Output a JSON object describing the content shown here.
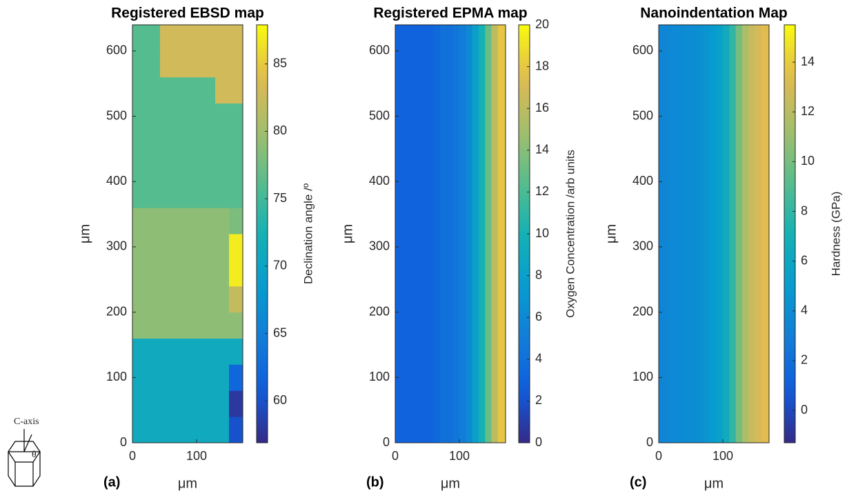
{
  "chart_data": [
    {
      "type": "heatmap",
      "title": "Registered EBSD map",
      "panel_label": "(a)",
      "xlabel": "μm",
      "ylabel": "μm",
      "colorbar_label": "Declination angle /º",
      "colormap": "parula",
      "xlim": [
        0,
        172
      ],
      "ylim": [
        0,
        640
      ],
      "xticks": [
        0,
        100
      ],
      "yticks": [
        0,
        100,
        200,
        300,
        400,
        500,
        600
      ],
      "clim": [
        56.9,
        87.9
      ],
      "cticks": [
        60,
        65,
        70,
        75,
        80,
        85
      ],
      "x_edges": [
        0,
        21.5,
        43,
        64.5,
        86,
        107.5,
        129,
        150.5,
        172
      ],
      "y_edges": [
        0,
        40,
        80,
        120,
        160,
        200,
        240,
        280,
        320,
        360,
        400,
        440,
        480,
        520,
        560,
        600,
        640
      ],
      "z": [
        [
          71,
          71,
          71,
          71,
          71,
          71,
          71,
          60
        ],
        [
          71,
          71,
          71,
          71,
          71,
          71,
          71,
          58
        ],
        [
          71,
          71,
          71,
          71,
          71,
          71,
          71,
          62
        ],
        [
          71,
          71,
          71,
          71,
          71,
          71,
          71,
          71
        ],
        [
          79,
          79,
          79,
          79,
          79,
          79,
          79,
          79
        ],
        [
          79,
          79,
          79,
          79,
          79,
          79,
          79,
          82
        ],
        [
          79,
          79,
          79,
          79,
          79,
          79,
          79,
          87
        ],
        [
          79,
          79,
          79,
          79,
          79,
          79,
          79,
          87
        ],
        [
          79,
          79,
          79,
          79,
          79,
          79,
          79,
          78
        ],
        [
          76,
          76,
          76,
          76,
          76,
          76,
          76,
          76
        ],
        [
          76,
          76,
          76,
          76,
          76,
          76,
          76,
          76
        ],
        [
          76,
          76,
          76,
          76,
          76,
          76,
          76,
          76
        ],
        [
          76,
          76,
          76,
          76,
          76,
          76,
          76,
          76
        ],
        [
          76,
          76,
          76,
          76,
          76,
          76,
          83,
          83
        ],
        [
          76,
          76,
          83,
          83,
          83,
          83,
          83,
          83
        ],
        [
          76,
          76,
          83,
          83,
          83,
          83,
          83,
          83
        ]
      ]
    },
    {
      "type": "heatmap",
      "title": "Registered EPMA map",
      "panel_label": "(b)",
      "xlabel": "μm",
      "ylabel": "μm",
      "colorbar_label": "Oxygen Concentration /arb units",
      "colormap": "parula",
      "xlim": [
        0,
        172
      ],
      "ylim": [
        0,
        640
      ],
      "xticks": [
        0,
        100
      ],
      "yticks": [
        0,
        100,
        200,
        300,
        400,
        500,
        600
      ],
      "clim": [
        0,
        20
      ],
      "cticks": [
        0,
        2,
        4,
        6,
        8,
        10,
        12,
        14,
        16,
        18,
        20
      ],
      "x_edges": [
        0,
        10,
        20,
        30,
        40,
        50,
        60,
        70,
        80,
        90,
        100,
        110,
        120,
        130,
        140,
        150,
        160,
        172
      ],
      "y_edges": [
        0,
        640
      ],
      "z": [
        [
          3,
          3,
          3,
          3,
          3,
          3,
          3.5,
          4,
          4,
          4.5,
          5,
          6,
          8,
          10,
          13,
          16,
          18
        ]
      ]
    },
    {
      "type": "heatmap",
      "title": "Nanoindentation Map",
      "panel_label": "(c)",
      "xlabel": "μm",
      "ylabel": "μm",
      "colorbar_label": "Hardness (GPa)",
      "colormap": "parula",
      "xlim": [
        0,
        172
      ],
      "ylim": [
        0,
        640
      ],
      "xticks": [
        0,
        100
      ],
      "yticks": [
        0,
        100,
        200,
        300,
        400,
        500,
        600
      ],
      "clim": [
        -1.3,
        15.5
      ],
      "cticks": [
        0,
        2,
        4,
        6,
        8,
        10,
        12,
        14
      ],
      "x_edges": [
        0,
        10,
        20,
        30,
        40,
        50,
        60,
        70,
        80,
        90,
        100,
        110,
        120,
        130,
        140,
        150,
        160,
        172
      ],
      "y_edges": [
        0,
        640
      ],
      "z": [
        [
          3.5,
          3.6,
          3.7,
          3.8,
          3.9,
          4,
          4.2,
          4.5,
          5,
          5.5,
          6.5,
          8,
          10,
          11.5,
          12.5,
          13,
          13.5
        ]
      ]
    }
  ],
  "inset": {
    "axis_label": "C-axis",
    "angle_label": "θ"
  }
}
